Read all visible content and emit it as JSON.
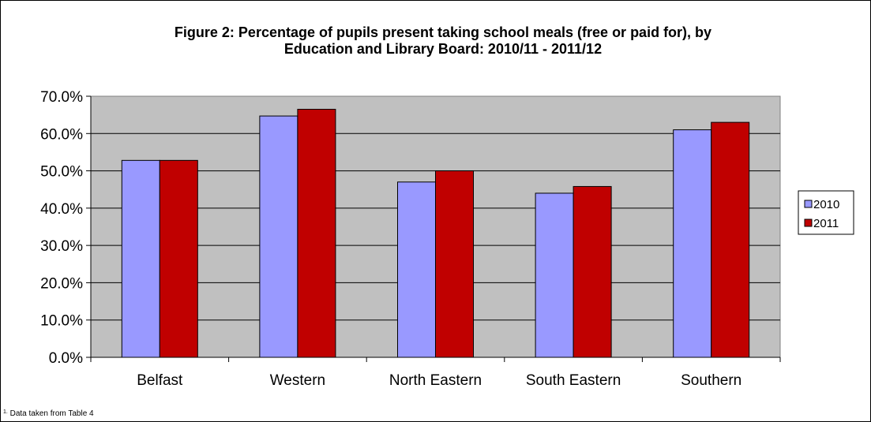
{
  "chart_data": {
    "type": "bar",
    "title_line1": "Figure 2: Percentage of pupils present taking school meals (free or paid for), by",
    "title_line2": "Education and Library Board: 2010/11 -  2011/12",
    "categories": [
      "Belfast",
      "Western",
      "North Eastern",
      "South Eastern",
      "Southern"
    ],
    "series": [
      {
        "name": "2010",
        "color": "#9999FF",
        "values": [
          52.8,
          64.7,
          47.0,
          44.0,
          61.0
        ]
      },
      {
        "name": "2011",
        "color": "#C00000",
        "values": [
          52.8,
          66.5,
          50.0,
          45.8,
          63.0
        ]
      }
    ],
    "ylim": [
      0,
      70
    ],
    "yticks": [
      "0.0%",
      "10.0%",
      "20.0%",
      "30.0%",
      "40.0%",
      "50.0%",
      "60.0%",
      "70.0%"
    ],
    "xlabel": "",
    "ylabel": "",
    "grid": true,
    "plot_background": "#C0C0C0",
    "legend_position": "right"
  },
  "footnote": {
    "marker": "1.",
    "text": " Data taken from Table 4"
  }
}
